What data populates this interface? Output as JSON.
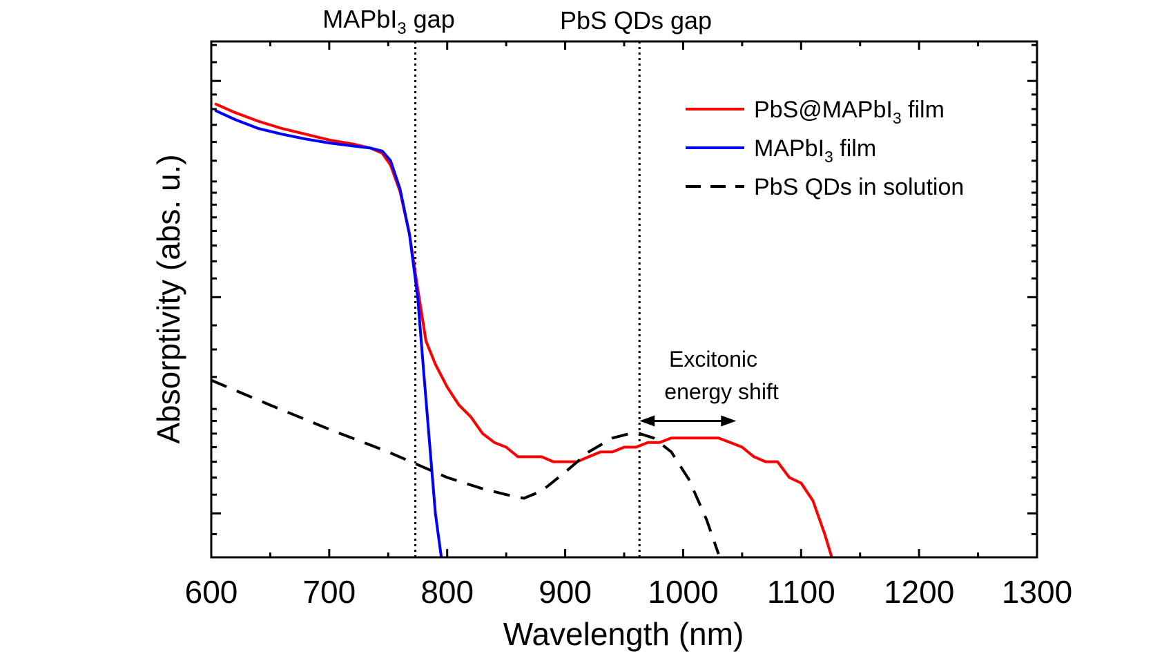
{
  "chart_data": {
    "type": "line",
    "title": "",
    "xlabel": "Wavelength (nm)",
    "ylabel": "Absorptivity (abs. u.)",
    "xlim": [
      600,
      1300
    ],
    "xticks": [
      "600",
      "700",
      "800",
      "900",
      "1000",
      "1100",
      "1200",
      "1300"
    ],
    "y_scale": "log",
    "y_tick_labels_shown": false,
    "grid": false,
    "legend_position": "top-right",
    "series": [
      {
        "name": "PbS@MAPbI3 film",
        "name_main": "PbS@MAPbI",
        "name_sub": "3",
        "name_tail": " film",
        "color": "#ff0000",
        "dash": "solid",
        "x": [
          604,
          620,
          640,
          660,
          680,
          700,
          720,
          735,
          745,
          752,
          760,
          768,
          775,
          782,
          790,
          800,
          810,
          820,
          830,
          840,
          850,
          860,
          870,
          880,
          890,
          900,
          910,
          920,
          930,
          940,
          950,
          960,
          970,
          980,
          990,
          1000,
          1010,
          1020,
          1030,
          1040,
          1050,
          1060,
          1070,
          1080,
          1090,
          1100,
          1110,
          1120,
          1126
        ],
        "y": [
          12.0,
          11.5,
          11.0,
          10.6,
          10.3,
          10.0,
          9.8,
          9.6,
          9.35,
          8.8,
          7.7,
          6.2,
          4.7,
          3.6,
          3.2,
          2.85,
          2.6,
          2.45,
          2.25,
          2.15,
          2.1,
          2.0,
          2.0,
          2.0,
          1.95,
          1.95,
          1.95,
          2.0,
          2.05,
          2.05,
          2.1,
          2.1,
          2.15,
          2.15,
          2.2,
          2.2,
          2.2,
          2.2,
          2.2,
          2.15,
          2.1,
          2.0,
          1.95,
          1.95,
          1.8,
          1.75,
          1.6,
          1.35,
          1.2
        ]
      },
      {
        "name": "MAPbI3 film",
        "name_main": "MAPbI",
        "name_sub": "3",
        "name_tail": " film",
        "color": "#0000ff",
        "dash": "solid",
        "x": [
          604,
          620,
          640,
          660,
          680,
          700,
          720,
          735,
          745,
          752,
          760,
          768,
          775,
          780,
          785,
          790,
          795
        ],
        "y": [
          11.6,
          11.1,
          10.6,
          10.3,
          10.05,
          9.85,
          9.7,
          9.6,
          9.45,
          9.0,
          7.8,
          6.2,
          4.5,
          3.1,
          2.15,
          1.5,
          1.2
        ]
      },
      {
        "name": "PbS QDs in solution",
        "color": "#000000",
        "dash": "dashed",
        "x": [
          600,
          650,
          700,
          750,
          800,
          830,
          850,
          865,
          880,
          900,
          920,
          940,
          955,
          963,
          975,
          990,
          1005,
          1020,
          1030
        ],
        "y": [
          2.95,
          2.6,
          2.3,
          2.05,
          1.8,
          1.7,
          1.65,
          1.62,
          1.68,
          1.85,
          2.05,
          2.2,
          2.25,
          2.25,
          2.2,
          2.05,
          1.78,
          1.45,
          1.22
        ]
      }
    ],
    "y_axis_range": [
      1.2,
      16.5
    ],
    "y_major_ticks": [
      1.5,
      4.5,
      13.5
    ],
    "y_minor_ticks": [
      1.35,
      1.65,
      1.8,
      1.95,
      2.1,
      2.25,
      2.4,
      2.55,
      3.0,
      3.45,
      3.9,
      4.95,
      5.4,
      5.85,
      6.3,
      6.75,
      7.2,
      7.65,
      8.1,
      9.0,
      9.9,
      10.8,
      11.7,
      12.6,
      14.85,
      16.2
    ],
    "vertical_markers": [
      {
        "x": 773,
        "label_main": "MAPbI",
        "label_sub": "3",
        "label_tail": " gap"
      },
      {
        "x": 963,
        "label": "PbS QDs gap"
      }
    ],
    "annotations": {
      "excitonic_line1": "Excitonic",
      "excitonic_line2": "energy shift",
      "arrow_x": [
        963,
        1045
      ],
      "arrow_y": 2.4
    }
  }
}
